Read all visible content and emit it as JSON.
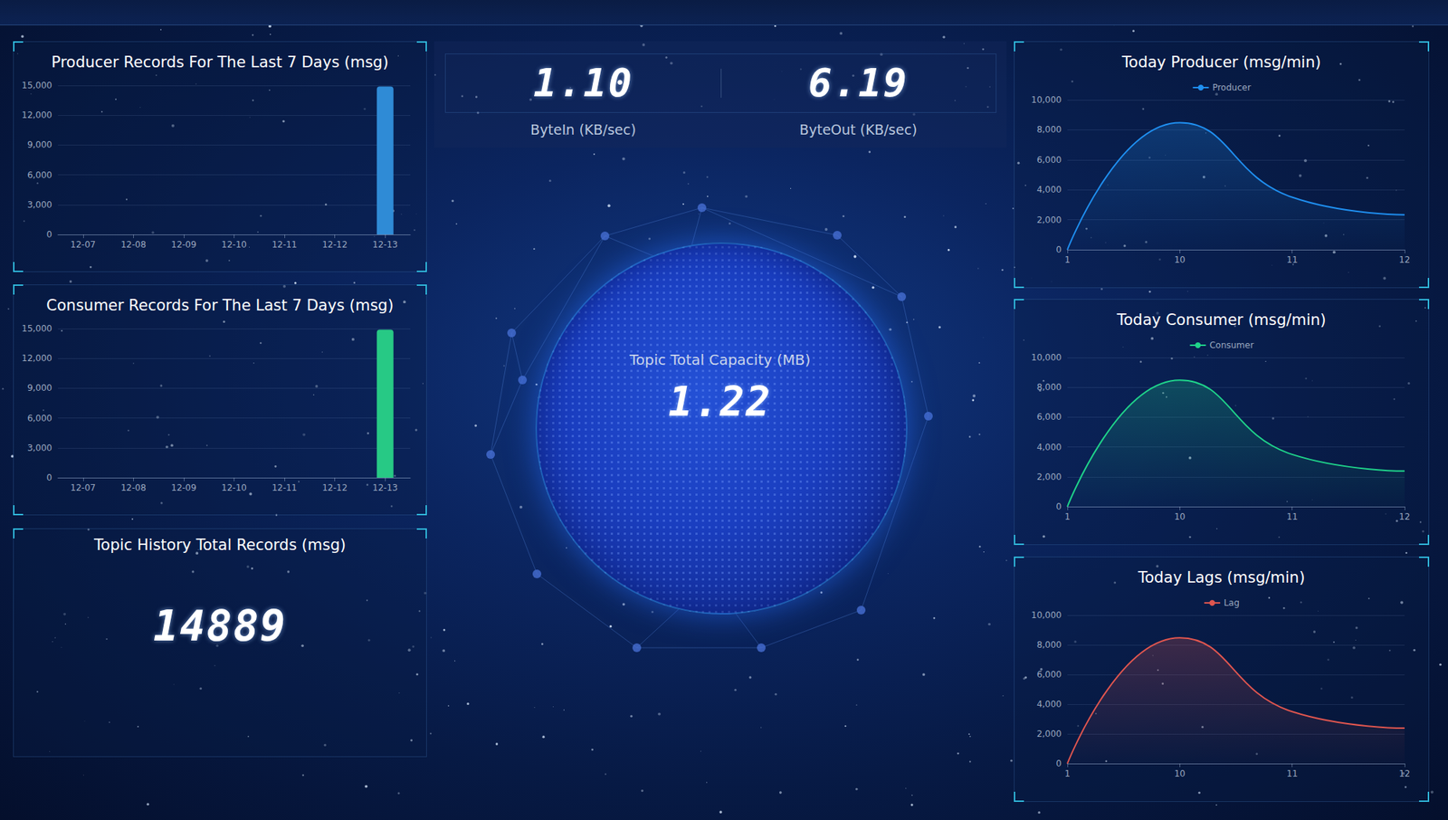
{
  "chart_data": [
    {
      "type": "bar",
      "title": "Producer Records For The Last 7 Days (msg)",
      "categories": [
        "12-07",
        "12-08",
        "12-09",
        "12-10",
        "12-11",
        "12-12",
        "12-13"
      ],
      "values": [
        0,
        0,
        0,
        0,
        0,
        0,
        14889
      ],
      "color": "#2f8bd6",
      "ylim": [
        0,
        15000
      ],
      "yticks": [
        0,
        {
          "value": 3000,
          "label": "3,000"
        },
        {
          "value": 6000,
          "label": "6,000"
        },
        {
          "value": 9000,
          "label": "9,000"
        },
        {
          "value": 12000,
          "label": "12,000"
        },
        {
          "value": 15000,
          "label": "15,000"
        }
      ],
      "grid": true
    },
    {
      "type": "bar",
      "title": "Consumer Records For The Last 7 Days (msg)",
      "categories": [
        "12-07",
        "12-08",
        "12-09",
        "12-10",
        "12-11",
        "12-12",
        "12-13"
      ],
      "values": [
        0,
        0,
        0,
        0,
        0,
        0,
        14889
      ],
      "color": "#27c985",
      "ylim": [
        0,
        15000
      ],
      "yticks": [
        0,
        {
          "value": 3000,
          "label": "3,000"
        },
        {
          "value": 6000,
          "label": "6,000"
        },
        {
          "value": 9000,
          "label": "9,000"
        },
        {
          "value": 12000,
          "label": "12,000"
        },
        {
          "value": 15000,
          "label": "15,000"
        }
      ],
      "grid": true
    },
    {
      "type": "line",
      "title": "Today Producer (msg/min)",
      "categories": [
        "1",
        "10",
        "11",
        "12"
      ],
      "series": [
        {
          "name": "Producer",
          "color": "#1f8ff0",
          "values": [
            0,
            8480,
            3500,
            2330
          ]
        }
      ],
      "ylim": [
        0,
        10000
      ],
      "yticks": [
        0,
        {
          "value": 2000,
          "label": "2,000"
        },
        {
          "value": 4000,
          "label": "4,000"
        },
        {
          "value": 6000,
          "label": "6,000"
        },
        {
          "value": 8000,
          "label": "8,000"
        },
        {
          "value": 10000,
          "label": "10,000"
        }
      ],
      "grid": true,
      "legend": "top"
    },
    {
      "type": "line",
      "title": "Today Consumer (msg/min)",
      "categories": [
        "1",
        "10",
        "11",
        "12"
      ],
      "series": [
        {
          "name": "Consumer",
          "color": "#1fd38a",
          "values": [
            0,
            8480,
            3500,
            2390
          ]
        }
      ],
      "ylim": [
        0,
        10000
      ],
      "yticks": [
        0,
        {
          "value": 2000,
          "label": "2,000"
        },
        {
          "value": 4000,
          "label": "4,000"
        },
        {
          "value": 6000,
          "label": "6,000"
        },
        {
          "value": 8000,
          "label": "8,000"
        },
        {
          "value": 10000,
          "label": "10,000"
        }
      ],
      "grid": true,
      "legend": "top"
    },
    {
      "type": "line",
      "title": "Today Lags (msg/min)",
      "categories": [
        "1",
        "10",
        "11",
        "12"
      ],
      "series": [
        {
          "name": "Lag",
          "color": "#e0564f",
          "values": [
            0,
            8480,
            3500,
            2390
          ]
        }
      ],
      "ylim": [
        0,
        10000
      ],
      "yticks": [
        0,
        {
          "value": 2000,
          "label": "2,000"
        },
        {
          "value": 4000,
          "label": "4,000"
        },
        {
          "value": 6000,
          "label": "6,000"
        },
        {
          "value": 8000,
          "label": "8,000"
        },
        {
          "value": 10000,
          "label": "10,000"
        }
      ],
      "grid": true,
      "legend": "top"
    }
  ],
  "stats": [
    {
      "label": "ByteIn (KB/sec)",
      "value": "1.10"
    },
    {
      "label": "ByteOut (KB/sec)",
      "value": "6.19"
    }
  ],
  "capacity": {
    "label": "Topic Total Capacity (MB)",
    "value": "1.22"
  },
  "history": {
    "title": "Topic History Total Records (msg)",
    "value": "14889"
  }
}
